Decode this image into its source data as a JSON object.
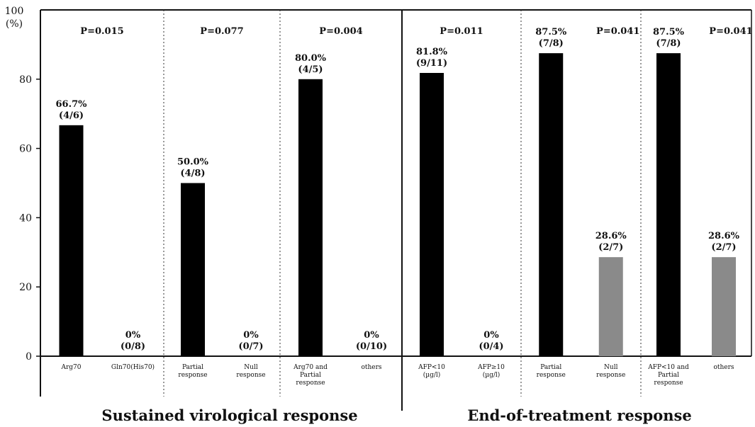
{
  "chart_data": {
    "type": "bar",
    "ylabel_line1": "100",
    "ylabel_line2": "(%)",
    "ylim": [
      0,
      100
    ],
    "yticks": [
      0,
      20,
      40,
      60,
      80
    ],
    "groups": [
      {
        "label": "Sustained virological response"
      },
      {
        "label": "End-of-treatment response"
      }
    ],
    "panels": [
      {
        "group": 0,
        "p_label": "P=0.015",
        "bars": [
          {
            "category": [
              "Arg70"
            ],
            "value": 66.7,
            "label_pct": "66.7%",
            "label_frac": "(4/6)",
            "color": "#000000"
          },
          {
            "category": [
              "Gln70(His70)"
            ],
            "value": 0,
            "label_pct": "0%",
            "label_frac": "(0/8)",
            "color": "#000000"
          }
        ]
      },
      {
        "group": 0,
        "p_label": "P=0.077",
        "bars": [
          {
            "category": [
              "Partial",
              "response"
            ],
            "value": 50.0,
            "label_pct": "50.0%",
            "label_frac": "(4/8)",
            "color": "#000000"
          },
          {
            "category": [
              "Null",
              "response"
            ],
            "value": 0,
            "label_pct": "0%",
            "label_frac": "(0/7)",
            "color": "#000000"
          }
        ]
      },
      {
        "group": 0,
        "p_label": "P=0.004",
        "bars": [
          {
            "category": [
              "Arg70 and",
              "Partial",
              "response"
            ],
            "value": 80.0,
            "label_pct": "80.0%",
            "label_frac": "(4/5)",
            "color": "#000000"
          },
          {
            "category": [
              "others"
            ],
            "value": 0,
            "label_pct": "0%",
            "label_frac": "(0/10)",
            "color": "#000000"
          }
        ]
      },
      {
        "group": 1,
        "p_label": "P=0.011",
        "bars": [
          {
            "category": [
              "AFP<10",
              "(µg/l)"
            ],
            "value": 81.8,
            "label_pct": "81.8%",
            "label_frac": "(9/11)",
            "color": "#000000"
          },
          {
            "category": [
              "AFP≥10",
              "(µg/l)"
            ],
            "value": 0,
            "label_pct": "0%",
            "label_frac": "(0/4)",
            "color": "#000000"
          }
        ]
      },
      {
        "group": 1,
        "p_label": "P=0.041",
        "bars": [
          {
            "category": [
              "Partial",
              "response"
            ],
            "value": 87.5,
            "label_pct": "87.5%",
            "label_frac": "(7/8)",
            "color": "#000000"
          },
          {
            "category": [
              "Null",
              "response"
            ],
            "value": 28.6,
            "label_pct": "28.6%",
            "label_frac": "(2/7)",
            "color": "#8a8a8a"
          }
        ]
      },
      {
        "group": 1,
        "p_label": "P=0.041",
        "bars": [
          {
            "category": [
              "AFP<10 and",
              "Partial",
              "response"
            ],
            "value": 87.5,
            "label_pct": "87.5%",
            "label_frac": "(7/8)",
            "color": "#000000"
          },
          {
            "category": [
              "others"
            ],
            "value": 28.6,
            "label_pct": "28.6%",
            "label_frac": "(2/7)",
            "color": "#8a8a8a"
          }
        ]
      }
    ]
  }
}
